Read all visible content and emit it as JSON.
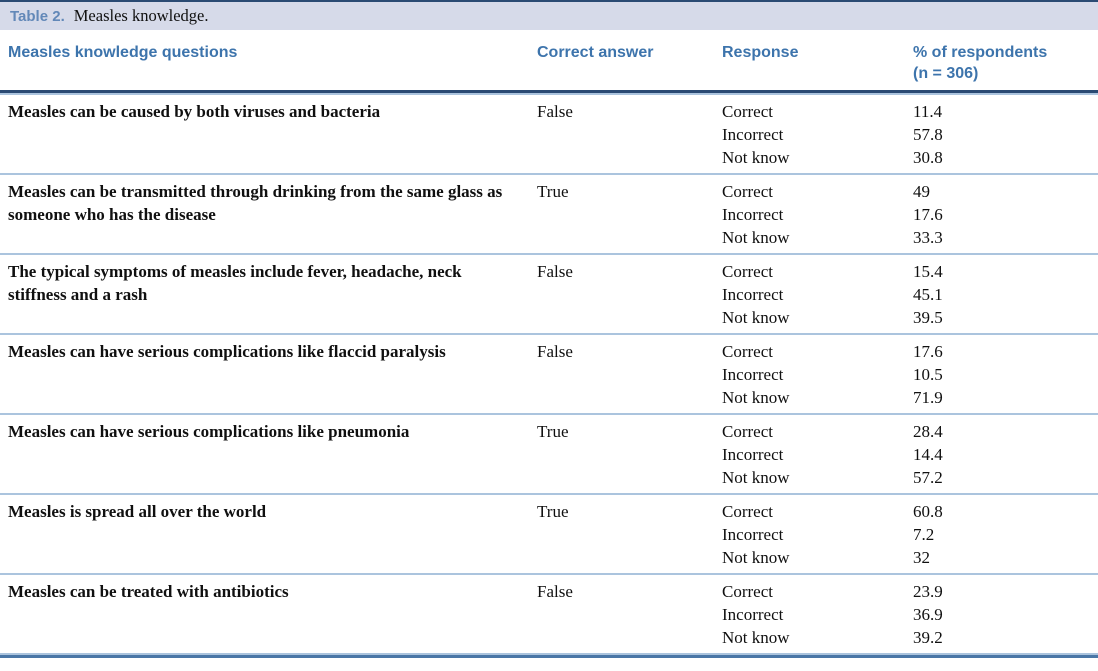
{
  "caption": {
    "label": "Table 2.",
    "title": "Measles knowledge."
  },
  "columns": {
    "question": "Measles knowledge questions",
    "answer": "Correct answer",
    "response": "Response",
    "percent_line1": "% of respondents",
    "percent_line2": "(n = 306)"
  },
  "rows": [
    {
      "question": "Measles can be caused by both viruses and bacteria",
      "answer": "False",
      "responses": [
        {
          "label": "Correct",
          "value": "11.4"
        },
        {
          "label": "Incorrect",
          "value": "57.8"
        },
        {
          "label": "Not know",
          "value": "30.8"
        }
      ]
    },
    {
      "question": "Measles can be transmitted through drinking from the same glass as someone who has the disease",
      "answer": "True",
      "responses": [
        {
          "label": "Correct",
          "value": "49"
        },
        {
          "label": "Incorrect",
          "value": "17.6"
        },
        {
          "label": "Not know",
          "value": "33.3"
        }
      ]
    },
    {
      "question": "The typical symptoms of measles include fever, headache, neck stiffness and a rash",
      "answer": "False",
      "responses": [
        {
          "label": "Correct",
          "value": "15.4"
        },
        {
          "label": "Incorrect",
          "value": "45.1"
        },
        {
          "label": "Not know",
          "value": "39.5"
        }
      ]
    },
    {
      "question": "Measles can have serious complications like flaccid paralysis",
      "answer": "False",
      "responses": [
        {
          "label": "Correct",
          "value": "17.6"
        },
        {
          "label": "Incorrect",
          "value": "10.5"
        },
        {
          "label": "Not know",
          "value": "71.9"
        }
      ]
    },
    {
      "question": "Measles can have serious complications like pneumonia",
      "answer": "True",
      "responses": [
        {
          "label": "Correct",
          "value": "28.4"
        },
        {
          "label": "Incorrect",
          "value": "14.4"
        },
        {
          "label": "Not know",
          "value": "57.2"
        }
      ]
    },
    {
      "question": "Measles is spread all over the world",
      "answer": "True",
      "responses": [
        {
          "label": "Correct",
          "value": "60.8"
        },
        {
          "label": "Incorrect",
          "value": "7.2"
        },
        {
          "label": "Not know",
          "value": "32"
        }
      ]
    },
    {
      "question": "Measles can be treated with antibiotics",
      "answer": "False",
      "responses": [
        {
          "label": "Correct",
          "value": "23.9"
        },
        {
          "label": "Incorrect",
          "value": "36.9"
        },
        {
          "label": "Not know",
          "value": "39.2"
        }
      ]
    }
  ],
  "colors": {
    "caption_bg": "#d6dae9",
    "caption_label": "#6288b8",
    "header_blue": "#3d74ac",
    "rule_dark": "#2a4a73",
    "rule_light": "#abc4de",
    "rule_bottom_dark": "#4a76a6"
  }
}
